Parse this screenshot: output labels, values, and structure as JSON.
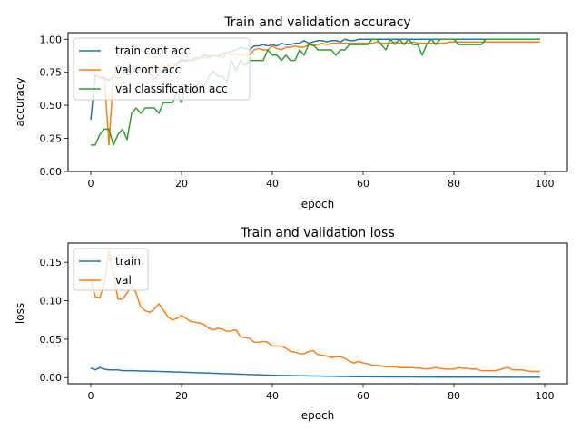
{
  "colors": {
    "train": "#1f77b4",
    "val": "#ff7f0e",
    "cls": "#2ca02c"
  },
  "chart_data": [
    {
      "type": "line",
      "title": "Train and validation accuracy",
      "xlabel": "epoch",
      "ylabel": "accuracy",
      "xlim": [
        -5,
        105
      ],
      "ylim": [
        0.0,
        1.05
      ],
      "xticks": [
        0,
        20,
        40,
        60,
        80,
        100
      ],
      "xtick_labels": [
        "0",
        "20",
        "40",
        "60",
        "80",
        "100"
      ],
      "yticks": [
        0.0,
        0.25,
        0.5,
        0.75,
        1.0
      ],
      "ytick_labels": [
        "0.00",
        "0.25",
        "0.50",
        "0.75",
        "1.00"
      ],
      "legend_position": "upper-left",
      "series": [
        {
          "name": "train cont acc",
          "color": "#1f77b4",
          "y": [
            0.39,
            0.73,
            0.71,
            0.7,
            0.69,
            0.72,
            0.8,
            0.79,
            0.73,
            0.74,
            0.78,
            0.77,
            0.76,
            0.74,
            0.7,
            0.73,
            0.77,
            0.8,
            0.78,
            0.82,
            0.85,
            0.84,
            0.84,
            0.86,
            0.86,
            0.88,
            0.87,
            0.88,
            0.87,
            0.89,
            0.9,
            0.91,
            0.92,
            0.94,
            0.93,
            0.92,
            0.95,
            0.95,
            0.96,
            0.95,
            0.96,
            0.95,
            0.97,
            0.96,
            0.96,
            0.97,
            0.97,
            0.99,
            0.97,
            0.98,
            0.99,
            0.99,
            0.98,
            0.99,
            0.99,
            0.98,
            1.0,
            0.99,
            0.99,
            1.0,
            1.0,
            1.0,
            1.0,
            1.0,
            1.0,
            1.0,
            1.0,
            1.0,
            1.0,
            1.0,
            1.0,
            1.0,
            1.0,
            1.0,
            1.0,
            1.0,
            1.0,
            1.0,
            1.0,
            1.0,
            1.0,
            1.0,
            1.0,
            1.0,
            1.0,
            1.0,
            1.0,
            1.0,
            1.0,
            1.0,
            1.0,
            1.0,
            1.0,
            1.0,
            1.0,
            1.0,
            1.0,
            1.0,
            1.0,
            1.0
          ]
        },
        {
          "name": "val cont acc",
          "color": "#ff7f0e",
          "y": [
            0.76,
            0.72,
            0.71,
            0.72,
            0.2,
            0.73,
            0.7,
            0.72,
            0.78,
            0.74,
            0.76,
            0.79,
            0.76,
            0.79,
            0.8,
            0.78,
            0.8,
            0.79,
            0.82,
            0.8,
            0.84,
            0.83,
            0.84,
            0.84,
            0.86,
            0.86,
            0.86,
            0.88,
            0.87,
            0.86,
            0.9,
            0.88,
            0.89,
            0.88,
            0.88,
            0.88,
            0.92,
            0.93,
            0.92,
            0.92,
            0.95,
            0.93,
            0.92,
            0.94,
            0.94,
            0.95,
            0.94,
            0.94,
            0.96,
            0.95,
            0.96,
            0.97,
            0.96,
            0.97,
            0.97,
            0.97,
            0.97,
            0.97,
            0.97,
            0.97,
            0.97,
            0.97,
            0.97,
            0.98,
            0.97,
            0.97,
            0.97,
            0.98,
            0.97,
            0.97,
            0.97,
            0.98,
            0.97,
            0.97,
            0.97,
            0.97,
            0.97,
            0.97,
            0.97,
            0.98,
            0.98,
            0.98,
            0.98,
            0.98,
            0.98,
            0.98,
            0.98,
            0.98,
            0.98,
            0.98,
            0.98,
            0.98,
            0.98,
            0.98,
            0.98,
            0.98,
            0.98,
            0.98,
            0.98,
            0.98
          ]
        },
        {
          "name": "val classification acc",
          "color": "#2ca02c",
          "y": [
            0.2,
            0.2,
            0.28,
            0.32,
            0.32,
            0.2,
            0.28,
            0.32,
            0.24,
            0.44,
            0.48,
            0.44,
            0.48,
            0.48,
            0.48,
            0.44,
            0.52,
            0.52,
            0.52,
            0.6,
            0.52,
            0.64,
            0.6,
            0.64,
            0.68,
            0.64,
            0.72,
            0.76,
            0.72,
            0.72,
            0.68,
            0.84,
            0.76,
            0.84,
            0.8,
            0.84,
            0.84,
            0.84,
            0.84,
            0.92,
            0.88,
            0.88,
            0.84,
            0.88,
            0.84,
            0.84,
            0.92,
            0.88,
            0.96,
            0.96,
            0.92,
            0.92,
            0.92,
            0.92,
            0.88,
            0.92,
            0.92,
            0.96,
            0.96,
            0.96,
            0.96,
            0.96,
            1.0,
            1.0,
            0.96,
            0.92,
            1.0,
            0.96,
            1.0,
            0.96,
            1.0,
            0.96,
            0.96,
            0.88,
            0.96,
            1.0,
            0.96,
            1.0,
            1.0,
            1.0,
            1.0,
            0.96,
            0.96,
            0.96,
            0.96,
            0.96,
            0.96,
            1.0,
            1.0,
            1.0,
            1.0,
            1.0,
            1.0,
            1.0,
            1.0,
            1.0,
            1.0,
            1.0,
            1.0,
            1.0
          ]
        }
      ]
    },
    {
      "type": "line",
      "title": "Train and validation loss",
      "xlabel": "epoch",
      "ylabel": "loss",
      "xlim": [
        -5,
        105
      ],
      "ylim": [
        -0.008,
        0.175
      ],
      "xticks": [
        0,
        20,
        40,
        60,
        80,
        100
      ],
      "xtick_labels": [
        "0",
        "20",
        "40",
        "60",
        "80",
        "100"
      ],
      "yticks": [
        0.0,
        0.05,
        0.1,
        0.15
      ],
      "ytick_labels": [
        "0.00",
        "0.05",
        "0.10",
        "0.15"
      ],
      "legend_position": "upper-left",
      "series": [
        {
          "name": "train",
          "color": "#1f77b4",
          "y": [
            0.0125,
            0.01,
            0.013,
            0.011,
            0.01,
            0.01,
            0.01,
            0.009,
            0.009,
            0.009,
            0.0088,
            0.0086,
            0.0085,
            0.0083,
            0.0082,
            0.008,
            0.0078,
            0.0076,
            0.0074,
            0.0072,
            0.007,
            0.0068,
            0.0066,
            0.0064,
            0.0062,
            0.006,
            0.0058,
            0.0056,
            0.0054,
            0.0052,
            0.005,
            0.0048,
            0.0046,
            0.0044,
            0.0042,
            0.004,
            0.0038,
            0.0036,
            0.0034,
            0.0032,
            0.003,
            0.0029,
            0.0028,
            0.0027,
            0.0026,
            0.0025,
            0.0024,
            0.0023,
            0.0022,
            0.0021,
            0.002,
            0.0019,
            0.0018,
            0.0017,
            0.0016,
            0.0015,
            0.0014,
            0.0013,
            0.0012,
            0.0012,
            0.0011,
            0.0011,
            0.001,
            0.001,
            0.001,
            0.0009,
            0.0009,
            0.0009,
            0.0008,
            0.0008,
            0.0008,
            0.0008,
            0.0007,
            0.0007,
            0.0007,
            0.0007,
            0.0007,
            0.0006,
            0.0006,
            0.0006,
            0.0006,
            0.0006,
            0.0006,
            0.0005,
            0.0005,
            0.0005,
            0.0005,
            0.0005,
            0.0005,
            0.0005,
            0.0004,
            0.0004,
            0.0004,
            0.0004,
            0.0004,
            0.0004,
            0.0004,
            0.0004,
            0.0004,
            0.0004
          ]
        },
        {
          "name": "val",
          "color": "#ff7f0e",
          "y": [
            0.128,
            0.105,
            0.104,
            0.122,
            0.165,
            0.135,
            0.102,
            0.102,
            0.11,
            0.12,
            0.11,
            0.092,
            0.087,
            0.085,
            0.089,
            0.096,
            0.088,
            0.079,
            0.075,
            0.077,
            0.081,
            0.077,
            0.073,
            0.072,
            0.071,
            0.069,
            0.064,
            0.062,
            0.064,
            0.063,
            0.06,
            0.061,
            0.062,
            0.053,
            0.052,
            0.051,
            0.046,
            0.046,
            0.047,
            0.046,
            0.041,
            0.041,
            0.041,
            0.038,
            0.034,
            0.033,
            0.031,
            0.031,
            0.034,
            0.035,
            0.03,
            0.029,
            0.028,
            0.026,
            0.027,
            0.027,
            0.025,
            0.021,
            0.019,
            0.021,
            0.019,
            0.018,
            0.016,
            0.016,
            0.015,
            0.014,
            0.014,
            0.014,
            0.013,
            0.013,
            0.013,
            0.013,
            0.012,
            0.012,
            0.011,
            0.012,
            0.013,
            0.012,
            0.011,
            0.011,
            0.011,
            0.013,
            0.012,
            0.012,
            0.011,
            0.011,
            0.009,
            0.009,
            0.009,
            0.009,
            0.01,
            0.012,
            0.013,
            0.01,
            0.01,
            0.01,
            0.009,
            0.008,
            0.008,
            0.008
          ]
        }
      ]
    }
  ]
}
